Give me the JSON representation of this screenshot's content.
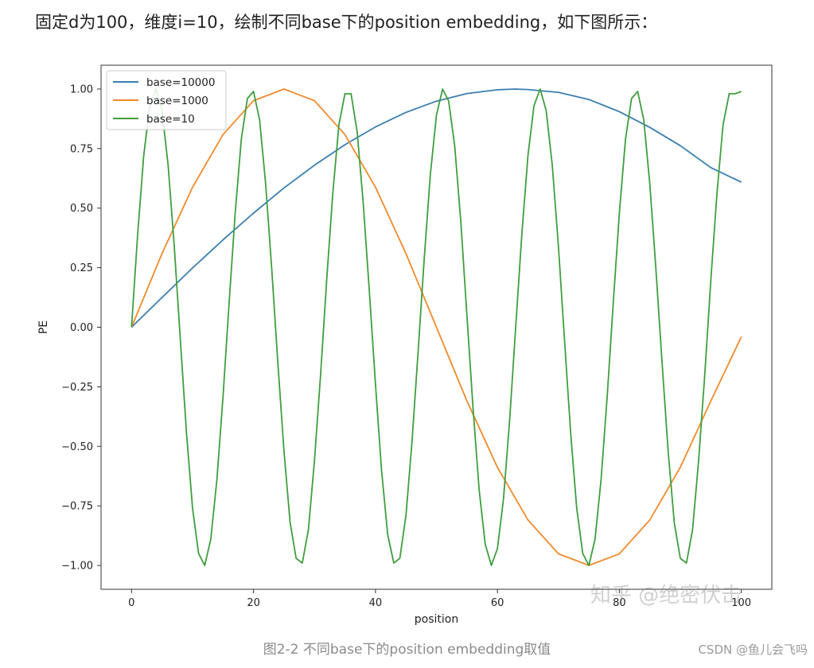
{
  "intro_text": "固定d为100，维度i=10，绘制不同base下的position embedding，如下图所示：",
  "caption": "图2-2 不同base下的position embedding取值",
  "credit": "CSDN @鱼儿会飞吗",
  "watermark": "知乎 @绝密伏击",
  "chart_data": {
    "type": "line",
    "xlabel": "position",
    "ylabel": "PE",
    "xlim": [
      -5,
      105
    ],
    "ylim": [
      -1.1,
      1.1
    ],
    "xticks": [
      0,
      20,
      40,
      60,
      80,
      100
    ],
    "xtick_labels": [
      "0",
      "20",
      "40",
      "60",
      "80",
      "100"
    ],
    "yticks": [
      1.0,
      0.75,
      0.5,
      0.25,
      0.0,
      -0.25,
      -0.5,
      -0.75,
      -1.0
    ],
    "ytick_labels": [
      "1.00",
      "0.75",
      "0.50",
      "0.25",
      "0.00",
      "−0.25",
      "−0.50",
      "−0.75",
      "−1.00"
    ],
    "grid": false,
    "legend_position": "top-left",
    "series": [
      {
        "name": "base=10000",
        "color": "#3a7fb0",
        "x": [
          0,
          5,
          10,
          15,
          20,
          25,
          30,
          35,
          40,
          45,
          50,
          55,
          60,
          62.8,
          65,
          70,
          75,
          80,
          85,
          90,
          95,
          100
        ],
        "y": [
          0,
          0.125,
          0.249,
          0.367,
          0.479,
          0.585,
          0.68,
          0.766,
          0.841,
          0.902,
          0.949,
          0.981,
          0.997,
          1.0,
          0.998,
          0.986,
          0.956,
          0.905,
          0.839,
          0.762,
          0.67,
          0.609
        ]
      },
      {
        "name": "base=1000",
        "color": "#f08b2c",
        "x": [
          0,
          5,
          10,
          15,
          20,
          25,
          30,
          35,
          40,
          45,
          50,
          55,
          60,
          65,
          70,
          75,
          80,
          85,
          90,
          95,
          100
        ],
        "y": [
          0,
          0.309,
          0.588,
          0.809,
          0.951,
          1.0,
          0.951,
          0.809,
          0.588,
          0.309,
          0,
          -0.309,
          -0.588,
          -0.809,
          -0.951,
          -1.0,
          -0.951,
          -0.809,
          -0.588,
          -0.309,
          -0.04
        ]
      },
      {
        "name": "base=10",
        "color": "#3f9e3f",
        "x": [
          0,
          1,
          2,
          3,
          4,
          5,
          6,
          7,
          8,
          9,
          10,
          11,
          12,
          13,
          14,
          15,
          16,
          17,
          18,
          19,
          20,
          21,
          22,
          23,
          24,
          25,
          26,
          27,
          28,
          29,
          30,
          31,
          32,
          33,
          34,
          35,
          36,
          37,
          38,
          39,
          40,
          41,
          42,
          43,
          44,
          45,
          46,
          47,
          48,
          49,
          50,
          51,
          52,
          53,
          54,
          55,
          56,
          57,
          58,
          59,
          60,
          61,
          62,
          63,
          64,
          65,
          66,
          67,
          68,
          69,
          70,
          71,
          72,
          73,
          74,
          75,
          76,
          77,
          78,
          79,
          80,
          81,
          82,
          83,
          84,
          85,
          86,
          87,
          88,
          89,
          90,
          91,
          92,
          93,
          94,
          95,
          96,
          97,
          98,
          99,
          100
        ],
        "y": [
          0,
          0.39,
          0.72,
          0.93,
          1.0,
          0.91,
          0.68,
          0.34,
          -0.05,
          -0.44,
          -0.76,
          -0.95,
          -1.0,
          -0.89,
          -0.64,
          -0.29,
          0.1,
          0.48,
          0.79,
          0.96,
          0.99,
          0.87,
          0.6,
          0.24,
          -0.15,
          -0.52,
          -0.82,
          -0.97,
          -0.99,
          -0.85,
          -0.56,
          -0.2,
          0.2,
          0.56,
          0.85,
          0.98,
          0.98,
          0.82,
          0.52,
          0.15,
          -0.24,
          -0.6,
          -0.87,
          -0.99,
          -0.97,
          -0.79,
          -0.48,
          -0.1,
          0.29,
          0.64,
          0.89,
          1.0,
          0.95,
          0.76,
          0.44,
          0.05,
          -0.34,
          -0.68,
          -0.91,
          -1.0,
          -0.93,
          -0.72,
          -0.39,
          0.0,
          0.39,
          0.72,
          0.93,
          1.0,
          0.91,
          0.68,
          0.34,
          -0.05,
          -0.44,
          -0.76,
          -0.95,
          -1.0,
          -0.89,
          -0.64,
          -0.29,
          0.1,
          0.48,
          0.79,
          0.96,
          0.99,
          0.87,
          0.6,
          0.24,
          -0.15,
          -0.52,
          -0.82,
          -0.97,
          -0.99,
          -0.85,
          -0.56,
          -0.2,
          0.2,
          0.56,
          0.85,
          0.98,
          0.98,
          0.99
        ]
      }
    ]
  }
}
